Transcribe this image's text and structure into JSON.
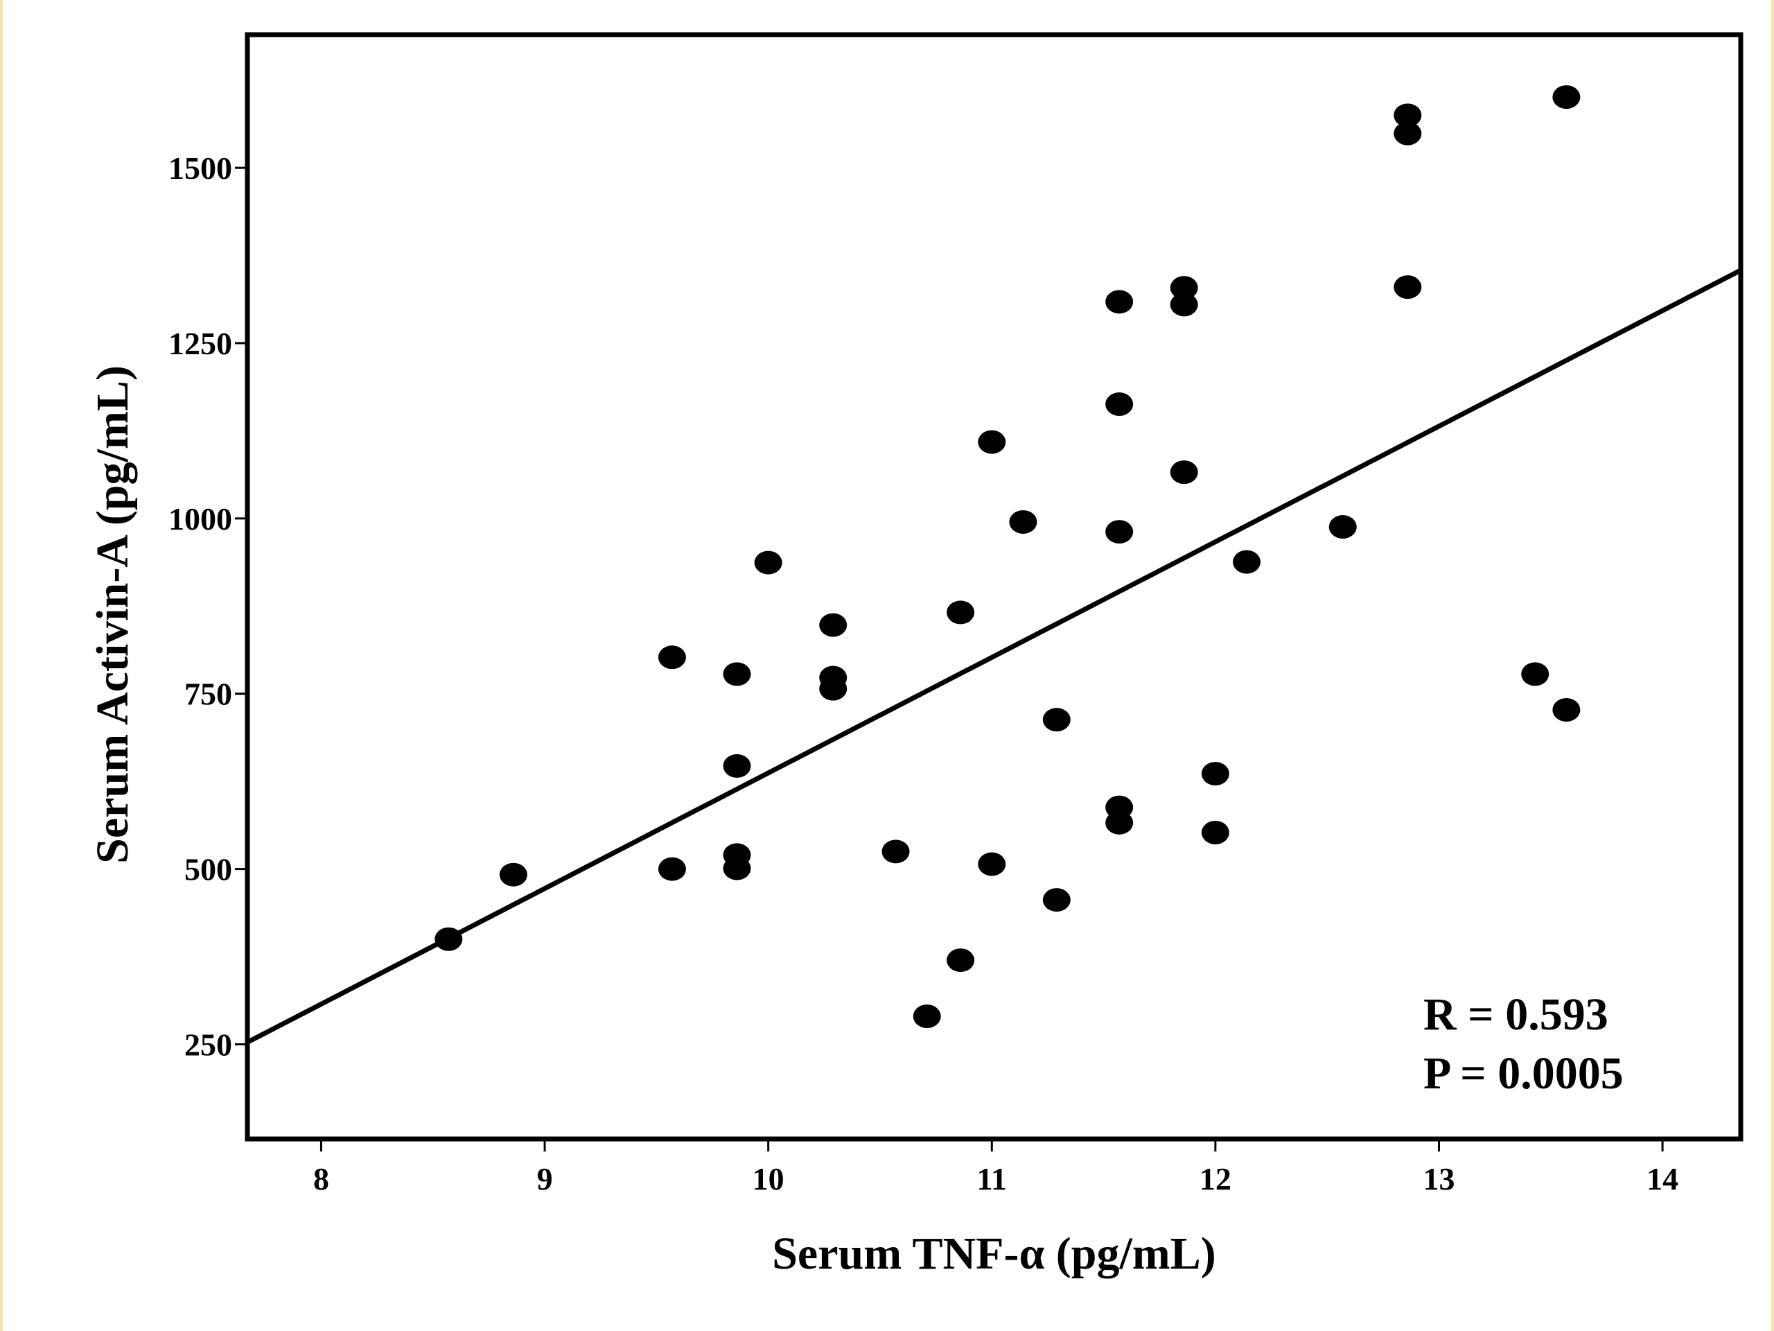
{
  "chart_data": {
    "type": "scatter",
    "title": "",
    "xlabel": "Serum TNF-α (pg/mL)",
    "ylabel": "Serum Activin-A (pg/mL)",
    "xlim": [
      7.67,
      14.35
    ],
    "ylim": [
      115,
      1690
    ],
    "x_ticks": [
      8,
      9,
      10,
      11,
      12,
      13,
      14
    ],
    "y_ticks": [
      250,
      500,
      750,
      1000,
      1250,
      1500
    ],
    "x_tick_labels": [
      "8",
      "9",
      "10",
      "11",
      "12",
      "13",
      "14"
    ],
    "y_tick_labels": [
      "250",
      "500",
      "750",
      "1000",
      "1250",
      "1500"
    ],
    "grid": false,
    "point_color": "#000000",
    "points": [
      {
        "x": 8.57,
        "y": 400
      },
      {
        "x": 8.86,
        "y": 492
      },
      {
        "x": 9.57,
        "y": 500
      },
      {
        "x": 9.57,
        "y": 802
      },
      {
        "x": 9.86,
        "y": 501
      },
      {
        "x": 9.86,
        "y": 520
      },
      {
        "x": 9.86,
        "y": 647
      },
      {
        "x": 9.86,
        "y": 778
      },
      {
        "x": 10.0,
        "y": 937
      },
      {
        "x": 10.29,
        "y": 757
      },
      {
        "x": 10.29,
        "y": 773
      },
      {
        "x": 10.29,
        "y": 848
      },
      {
        "x": 10.57,
        "y": 525
      },
      {
        "x": 10.71,
        "y": 290
      },
      {
        "x": 10.86,
        "y": 370
      },
      {
        "x": 10.86,
        "y": 866
      },
      {
        "x": 11.0,
        "y": 507
      },
      {
        "x": 11.0,
        "y": 1109
      },
      {
        "x": 11.14,
        "y": 995
      },
      {
        "x": 11.29,
        "y": 456
      },
      {
        "x": 11.29,
        "y": 713
      },
      {
        "x": 11.57,
        "y": 566
      },
      {
        "x": 11.57,
        "y": 588
      },
      {
        "x": 11.57,
        "y": 981
      },
      {
        "x": 11.57,
        "y": 1163
      },
      {
        "x": 11.57,
        "y": 1309
      },
      {
        "x": 11.86,
        "y": 1066
      },
      {
        "x": 11.86,
        "y": 1305
      },
      {
        "x": 11.86,
        "y": 1329
      },
      {
        "x": 12.0,
        "y": 552
      },
      {
        "x": 12.0,
        "y": 636
      },
      {
        "x": 12.14,
        "y": 938
      },
      {
        "x": 12.57,
        "y": 988
      },
      {
        "x": 12.86,
        "y": 1330
      },
      {
        "x": 12.86,
        "y": 1549
      },
      {
        "x": 12.86,
        "y": 1575
      },
      {
        "x": 13.43,
        "y": 778
      },
      {
        "x": 13.57,
        "y": 727
      },
      {
        "x": 13.57,
        "y": 1601
      }
    ],
    "regression_line": {
      "x1": 7.67,
      "y1": 253,
      "x2": 14.35,
      "y2": 1354
    },
    "annotations": [
      "R = 0.593",
      "P = 0.0005"
    ]
  }
}
